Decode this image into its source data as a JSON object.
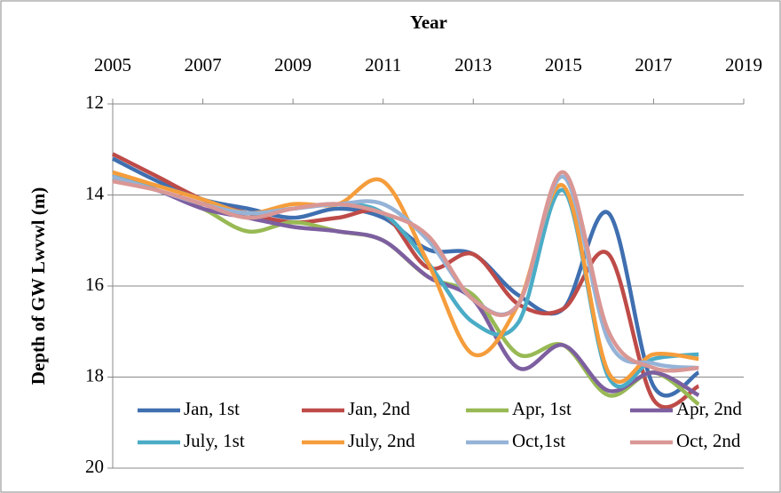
{
  "chart_data": {
    "type": "line",
    "xlabel": "Year",
    "ylabel": "Depth of GW Lwvwl (m)",
    "x": [
      2005,
      2006,
      2007,
      2008,
      2009,
      2010,
      2011,
      2012,
      2013,
      2014,
      2015,
      2016,
      2017,
      2018
    ],
    "xlim": [
      2005,
      2019
    ],
    "xticks": [
      2005,
      2007,
      2009,
      2011,
      2013,
      2015,
      2017,
      2019
    ],
    "ylim": [
      12,
      20
    ],
    "yticks": [
      12,
      14,
      16,
      18,
      20
    ],
    "y_inverted": true,
    "x_axis_position": "top",
    "grid": true,
    "smooth": true,
    "legend": "lower-center",
    "series": [
      {
        "name": "Jan, 1st",
        "color": "#3f6fb0",
        "values": [
          13.2,
          13.7,
          14.1,
          14.3,
          14.5,
          14.3,
          14.5,
          15.2,
          15.3,
          16.2,
          16.5,
          14.4,
          18.2,
          17.9
        ]
      },
      {
        "name": "Jan, 2nd",
        "color": "#be4b48",
        "values": [
          13.1,
          13.6,
          14.1,
          14.4,
          14.6,
          14.5,
          14.4,
          15.6,
          15.3,
          16.4,
          16.5,
          15.3,
          18.5,
          18.2
        ]
      },
      {
        "name": "Apr, 1st",
        "color": "#98b954",
        "values": [
          13.6,
          13.9,
          14.3,
          14.8,
          14.6,
          14.8,
          15.0,
          15.8,
          16.2,
          17.5,
          17.3,
          18.4,
          17.9,
          18.6
        ]
      },
      {
        "name": "Apr, 2nd",
        "color": "#7d5fa0",
        "values": [
          13.6,
          13.9,
          14.3,
          14.5,
          14.7,
          14.8,
          15.0,
          15.8,
          16.3,
          17.8,
          17.3,
          18.3,
          17.9,
          18.4
        ]
      },
      {
        "name": "July, 1st",
        "color": "#4bacc6",
        "values": [
          13.6,
          13.8,
          14.1,
          14.4,
          14.3,
          14.2,
          14.4,
          15.5,
          16.8,
          16.8,
          13.9,
          18.0,
          17.6,
          17.5
        ]
      },
      {
        "name": "July, 2nd",
        "color": "#f59d3c",
        "values": [
          13.5,
          13.8,
          14.1,
          14.4,
          14.2,
          14.2,
          13.7,
          15.5,
          17.5,
          16.4,
          13.8,
          17.9,
          17.5,
          17.6
        ]
      },
      {
        "name": "Oct,1st",
        "color": "#95b3d7",
        "values": [
          13.6,
          13.9,
          14.2,
          14.4,
          14.3,
          14.2,
          14.2,
          15.0,
          16.3,
          16.4,
          13.6,
          17.2,
          17.7,
          17.8
        ]
      },
      {
        "name": "Oct, 2nd",
        "color": "#d99795",
        "values": [
          13.7,
          13.9,
          14.2,
          14.5,
          14.3,
          14.2,
          14.4,
          14.9,
          16.3,
          16.4,
          13.5,
          17.0,
          17.8,
          17.8
        ]
      }
    ]
  }
}
